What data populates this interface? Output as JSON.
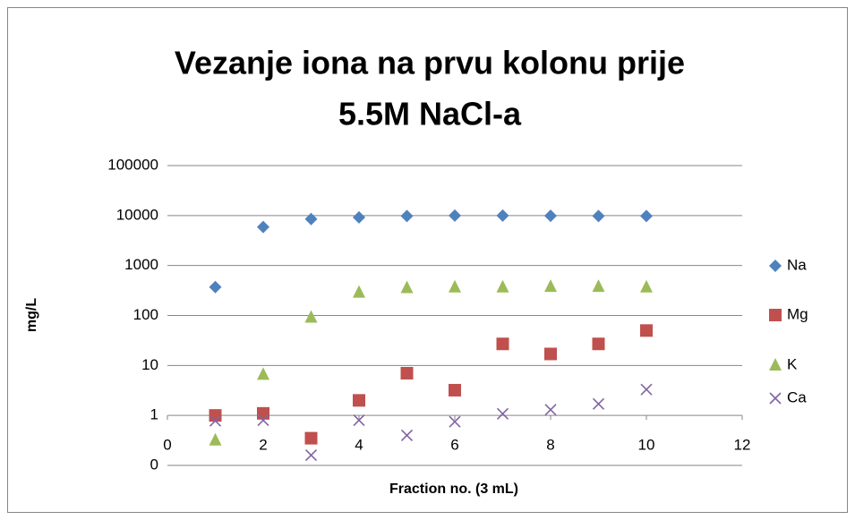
{
  "chart_data": {
    "type": "scatter",
    "title": [
      "Vezanje iona na prvu kolonu prije",
      "5.5M NaCl-a"
    ],
    "x_label": "Fraction no. (3 mL)",
    "y_label": "mg/L",
    "xlim": [
      0,
      12
    ],
    "xticks": [
      0,
      2,
      4,
      6,
      8,
      10,
      12
    ],
    "ylim": [
      0.1,
      100000
    ],
    "y_scale": "log",
    "yticks": [
      {
        "value": 0.1,
        "label": "0"
      },
      1,
      10,
      100,
      1000,
      10000,
      100000
    ],
    "x_axis_crosses": 1,
    "grid": true,
    "legend": "right",
    "x": [
      1,
      2,
      3,
      4,
      5,
      6,
      7,
      8,
      9,
      10
    ],
    "series": [
      {
        "name": "Na",
        "color": "#4f81bd",
        "marker": "diamond",
        "values": [
          370,
          5900,
          8500,
          9200,
          9800,
          10000,
          10000,
          9900,
          9800,
          9800
        ]
      },
      {
        "name": "Mg",
        "color": "#c0504d",
        "marker": "square",
        "values": [
          1.0,
          1.1,
          0.35,
          2.0,
          7,
          3.2,
          27,
          17,
          27,
          50
        ]
      },
      {
        "name": "K",
        "color": "#9bbb59",
        "marker": "triangle",
        "values": [
          0.32,
          6.6,
          92,
          290,
          360,
          370,
          370,
          380,
          380,
          370
        ]
      },
      {
        "name": "Ca",
        "color": "#8064a2",
        "marker": "x",
        "values": [
          0.78,
          0.8,
          0.16,
          0.8,
          0.4,
          0.75,
          1.08,
          1.3,
          1.7,
          3.3
        ]
      }
    ]
  }
}
